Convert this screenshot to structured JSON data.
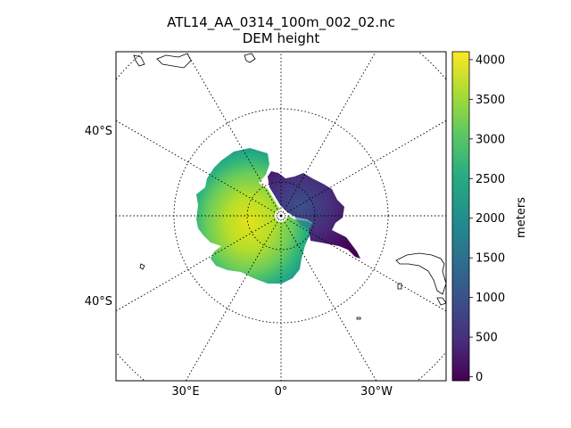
{
  "figure": {
    "title_line1": "ATL14_AA_0314_100m_002_02.nc",
    "title_line2": "DEM height"
  },
  "map": {
    "projection": "south-polar-stereographic",
    "graticule": "dotted",
    "lat_labels_left": [
      "40°S",
      "40°S"
    ],
    "lon_labels_bottom": [
      "30°E",
      "0°",
      "30°W"
    ],
    "coastlines": "black outline"
  },
  "colorbar": {
    "label": "meters",
    "colormap": "viridis",
    "range": [
      -50,
      4100
    ],
    "ticks": [
      0,
      500,
      1000,
      1500,
      2000,
      2500,
      3000,
      3500,
      4000
    ],
    "tick_labels": [
      "0",
      "500",
      "1000",
      "1500",
      "2000",
      "2500",
      "3000",
      "3500",
      "4000"
    ],
    "colors": [
      "#440154",
      "#472f7d",
      "#3b518b",
      "#2c718e",
      "#21908d",
      "#27ad81",
      "#5cc863",
      "#aadc32",
      "#fde725"
    ]
  }
}
